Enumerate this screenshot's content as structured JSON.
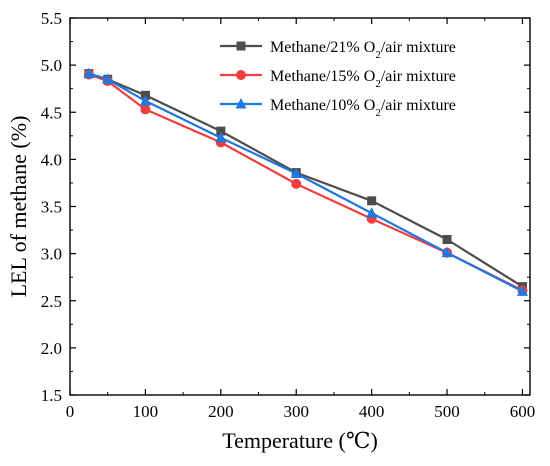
{
  "chart_data": {
    "type": "line",
    "title": "",
    "xlabel": "Temperature (℃)",
    "ylabel": "LEL of methane (%)",
    "xlim": [
      0,
      610
    ],
    "ylim": [
      1.5,
      5.5
    ],
    "xticks": [
      0,
      100,
      200,
      300,
      400,
      500,
      600
    ],
    "yticks": [
      1.5,
      2.0,
      2.5,
      3.0,
      3.5,
      4.0,
      4.5,
      5.0,
      5.5
    ],
    "xtick_labels": [
      "0",
      "100",
      "200",
      "300",
      "400",
      "500",
      "600"
    ],
    "ytick_labels": [
      "1.5",
      "2.0",
      "2.5",
      "3.0",
      "3.5",
      "4.0",
      "4.5",
      "5.0",
      "5.5"
    ],
    "grid": false,
    "legend_position": "top-right",
    "series": [
      {
        "name": "Methane/21% O2/air mixture",
        "legend_prefix": "Methane/21% O",
        "legend_sub": "2",
        "legend_suffix": "/air mixture",
        "color": "#4d4d4d",
        "marker": "square",
        "x": [
          25,
          50,
          100,
          200,
          300,
          400,
          500,
          600
        ],
        "y": [
          4.91,
          4.85,
          4.68,
          4.3,
          3.86,
          3.56,
          3.15,
          2.65
        ]
      },
      {
        "name": "Methane/15% O2/air mixture",
        "legend_prefix": "Methane/15% O",
        "legend_sub": "2",
        "legend_suffix": "/air mixture",
        "color": "#ee3f3f",
        "marker": "circle",
        "x": [
          25,
          50,
          100,
          200,
          300,
          400,
          500,
          600
        ],
        "y": [
          4.9,
          4.83,
          4.53,
          4.18,
          3.74,
          3.37,
          3.01,
          2.61
        ]
      },
      {
        "name": "Methane/10% O2/air mixture",
        "legend_prefix": "Methane/10% O",
        "legend_sub": "2",
        "legend_suffix": "/air mixture",
        "color": "#1f77e0",
        "marker": "triangle",
        "x": [
          25,
          50,
          100,
          200,
          300,
          400,
          500,
          600
        ],
        "y": [
          4.91,
          4.85,
          4.62,
          4.23,
          3.85,
          3.43,
          3.01,
          2.6
        ]
      }
    ]
  }
}
